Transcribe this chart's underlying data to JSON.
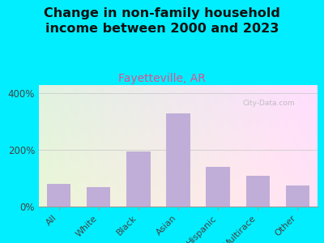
{
  "title": "Change in non-family household\nincome between 2000 and 2023",
  "subtitle": "Fayetteville, AR",
  "categories": [
    "All",
    "White",
    "Black",
    "Asian",
    "Hispanic",
    "Multirace",
    "Other"
  ],
  "values": [
    80,
    70,
    195,
    330,
    140,
    110,
    75
  ],
  "bar_color": "#c0aed8",
  "title_fontsize": 11.5,
  "subtitle_fontsize": 10,
  "subtitle_color": "#e05090",
  "background_outer": "#00eeff",
  "yticks": [
    0,
    200,
    400
  ],
  "ylim": [
    0,
    430
  ],
  "watermark": "City-Data.com"
}
